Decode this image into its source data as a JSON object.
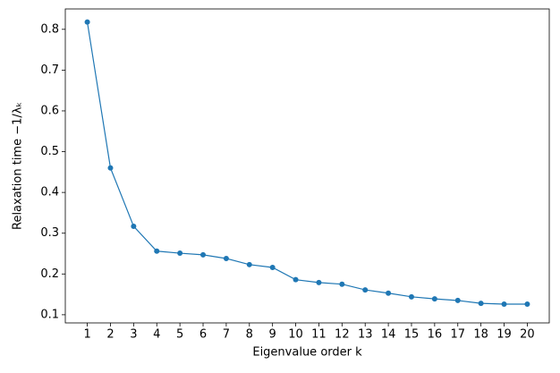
{
  "chart_data": {
    "type": "line",
    "xlabel": "Eigenvalue order k",
    "ylabel": "Relaxation time −1/λₖ",
    "x": [
      1,
      2,
      3,
      4,
      5,
      6,
      7,
      8,
      9,
      10,
      11,
      12,
      13,
      14,
      15,
      16,
      17,
      18,
      19,
      20
    ],
    "series": [
      {
        "color": "#1f77b4",
        "values": [
          0.818,
          0.46,
          0.317,
          0.256,
          0.251,
          0.247,
          0.238,
          0.223,
          0.216,
          0.186,
          0.179,
          0.175,
          0.161,
          0.153,
          0.144,
          0.139,
          0.135,
          0.128,
          0.126,
          0.126
        ]
      }
    ],
    "xlim": [
      0.05,
      20.95
    ],
    "ylim": [
      0.08,
      0.85
    ],
    "xticks": [
      1,
      2,
      3,
      4,
      5,
      6,
      7,
      8,
      9,
      10,
      11,
      12,
      13,
      14,
      15,
      16,
      17,
      18,
      19,
      20
    ],
    "yticks": [
      0.1,
      0.2,
      0.3,
      0.4,
      0.5,
      0.6,
      0.7,
      0.8
    ],
    "grid": false
  }
}
